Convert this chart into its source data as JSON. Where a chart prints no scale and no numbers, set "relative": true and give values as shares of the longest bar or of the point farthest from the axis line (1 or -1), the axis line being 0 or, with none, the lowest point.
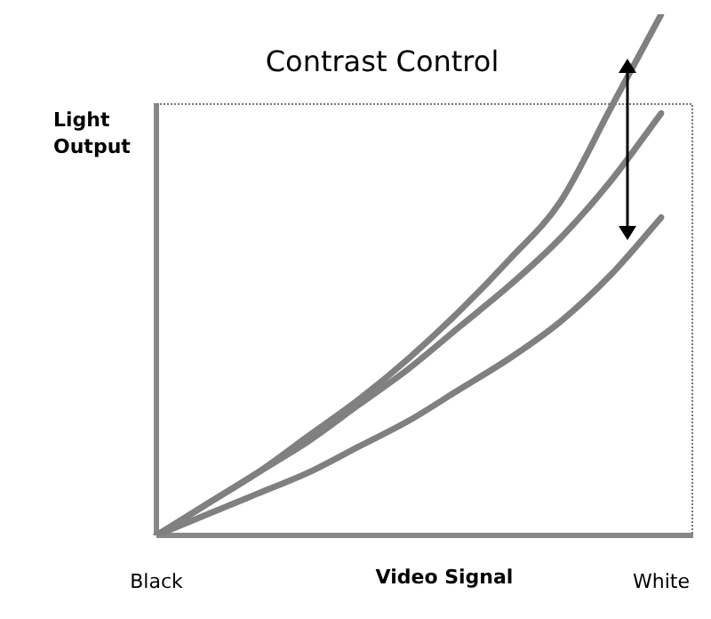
{
  "chart_data": {
    "type": "line",
    "title": "Contrast Control",
    "xlabel": "Video Signal",
    "ylabel": "Light Output",
    "relative": true,
    "categories": [
      "Black",
      null,
      null,
      null,
      null,
      null,
      null,
      null,
      null,
      null,
      "White"
    ],
    "series": [
      {
        "color": "#808080",
        "values": [
          0,
          0.06,
          0.12,
          0.19,
          0.26,
          0.34,
          0.43,
          0.53,
          0.64,
          0.82,
          1.0
        ]
      },
      {
        "color": "#808080",
        "values": [
          0,
          0.06,
          0.12,
          0.18,
          0.25,
          0.32,
          0.4,
          0.48,
          0.57,
          0.68,
          0.81
        ]
      },
      {
        "color": "#808080",
        "values": [
          0,
          0.04,
          0.08,
          0.12,
          0.17,
          0.22,
          0.28,
          0.34,
          0.41,
          0.5,
          0.61
        ]
      }
    ]
  }
}
